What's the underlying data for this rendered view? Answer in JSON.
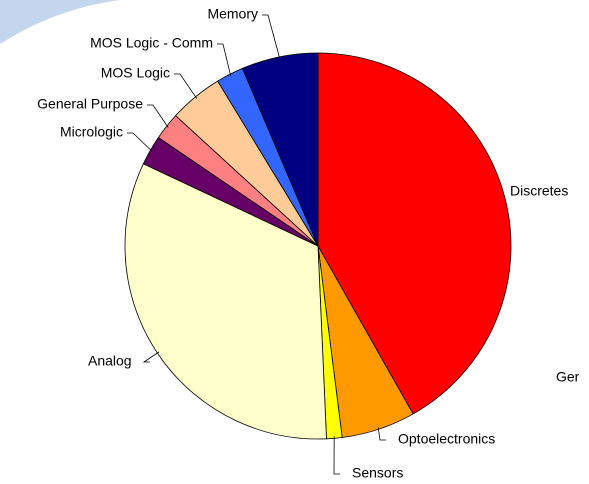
{
  "chart_data": {
    "type": "pie",
    "categories": [
      "Discretes",
      "Optoelectronics",
      "Sensors",
      "Analog",
      "Micrologic",
      "General Purpose",
      "MOS Logic",
      "MOS Logic - Comm",
      "Memory"
    ],
    "values": [
      41.8,
      6.2,
      1.3,
      32.7,
      2.5,
      2.3,
      4.5,
      2.3,
      6.4
    ],
    "colors": [
      "#ff0000",
      "#ff9900",
      "#ffff00",
      "#ffffcc",
      "#660066",
      "#ff8080",
      "#ffcc99",
      "#3366ff",
      "#000080"
    ],
    "annotations": [
      "Ger"
    ]
  }
}
